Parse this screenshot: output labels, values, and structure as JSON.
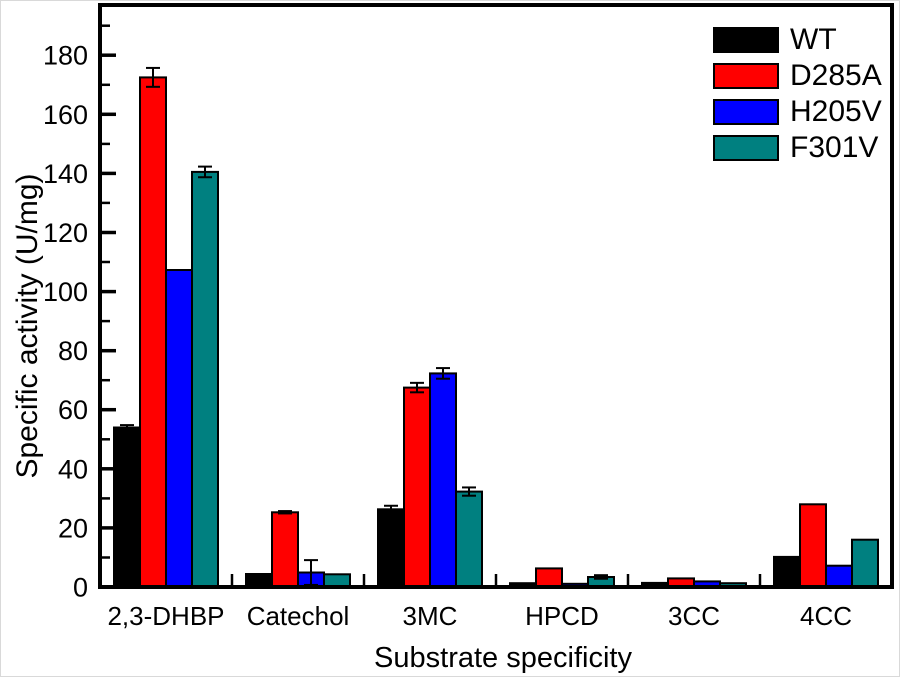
{
  "figure": {
    "background": "#ffffff",
    "frame_color": "#000000",
    "border_color": "#d9d9d9"
  },
  "chart_data": {
    "type": "bar",
    "title": "",
    "xlabel": "Substrate specificity",
    "ylabel": "Specific activity (U/mg)",
    "categories": [
      "2,3-DHBP",
      "Catechol",
      "3MC",
      "HPCD",
      "3CC",
      "4CC"
    ],
    "series": [
      {
        "name": "WT",
        "color": "#000000",
        "values": [
          54.0,
          4.4,
          26.3,
          1.3,
          1.4,
          10.2
        ],
        "errors": [
          0.8,
          0,
          1.2,
          0,
          0,
          0
        ]
      },
      {
        "name": "D285A",
        "color": "#ff0000",
        "values": [
          172.5,
          25.3,
          67.5,
          6.3,
          2.9,
          28.0
        ],
        "errors": [
          3.2,
          0.4,
          1.6,
          0,
          0,
          0
        ]
      },
      {
        "name": "H205V",
        "color": "#0000ff",
        "values": [
          107.3,
          4.9,
          72.3,
          1.1,
          1.9,
          7.2
        ],
        "errors": [
          0,
          4.2,
          1.8,
          0,
          0,
          0
        ]
      },
      {
        "name": "F301V",
        "color": "#008080",
        "values": [
          140.5,
          4.3,
          32.3,
          3.4,
          1.3,
          16.0
        ],
        "errors": [
          1.8,
          0,
          1.4,
          0.6,
          0,
          0
        ]
      }
    ],
    "ylim": [
      0,
      197
    ],
    "y_major_ticks": [
      0,
      20,
      40,
      60,
      80,
      100,
      120,
      140,
      160,
      180
    ],
    "y_minor_step": 10,
    "grid": false,
    "legend_position": "top-right",
    "bar_edge_color": "#000000",
    "error_bar_color": "#000000",
    "tick_direction": "in"
  }
}
